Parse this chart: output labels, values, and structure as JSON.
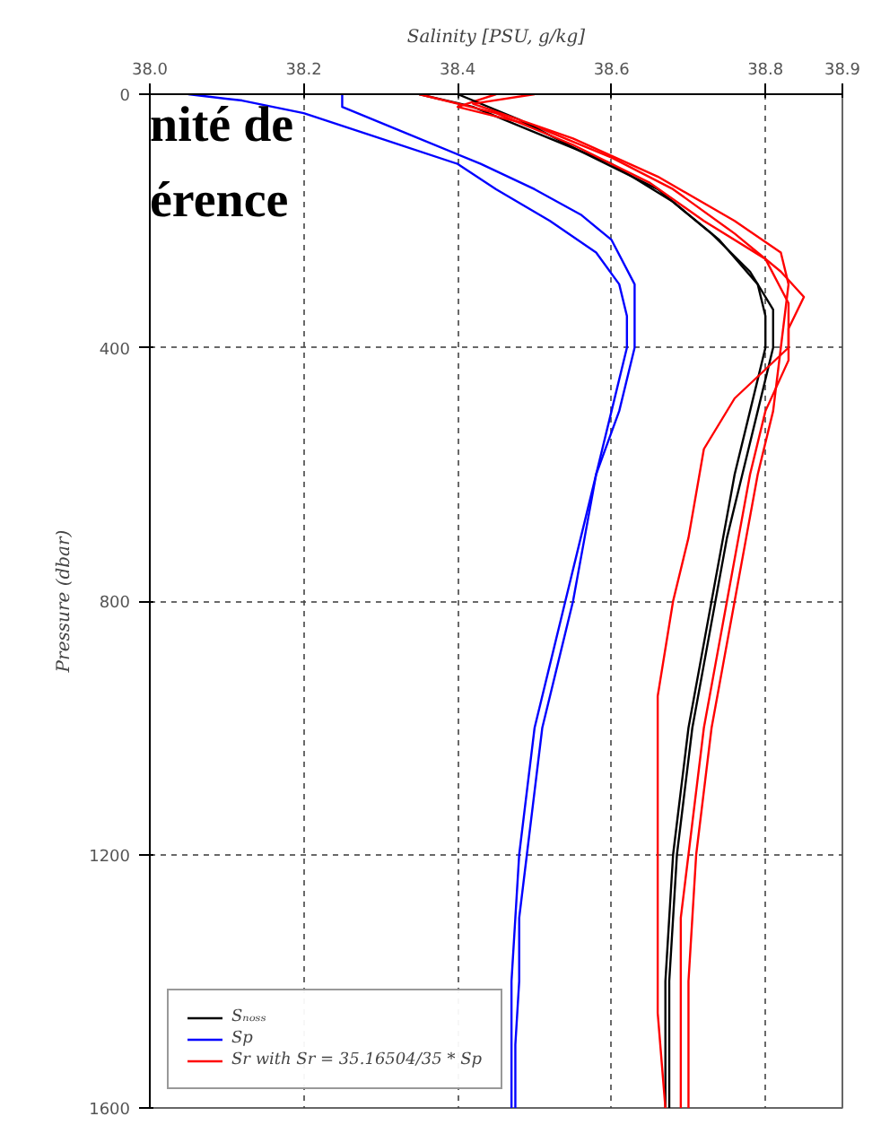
{
  "chart_data": {
    "type": "line",
    "xlabel": "Salinity [PSU, g/kg]",
    "ylabel": "Pressure (dbar)",
    "annotations": [
      "nité de",
      "érence"
    ],
    "xlim": [
      38.0,
      38.9
    ],
    "xticks": [
      {
        "value": 38.0,
        "label": "38.0"
      },
      {
        "value": 38.2,
        "label": "38.2"
      },
      {
        "value": 38.4,
        "label": "38.4"
      },
      {
        "value": 38.6,
        "label": "38.6"
      },
      {
        "value": 38.8,
        "label": "38.8"
      },
      {
        "value": 38.9,
        "label": "38.9"
      }
    ],
    "ylim": [
      1600,
      0
    ],
    "yticks": [
      0,
      400,
      800,
      1200,
      1600
    ],
    "grid": true,
    "legend": "bottom left",
    "line_style": "solid",
    "marker": "none",
    "series": [
      {
        "name": "Sₙₒₛₛ",
        "color": "#000000",
        "x": [
          38.35,
          38.42,
          38.5,
          38.6,
          38.68,
          38.74,
          38.79,
          38.8,
          38.8,
          38.78,
          38.76,
          38.745,
          38.73,
          38.715,
          38.7,
          38.69,
          38.68,
          38.675,
          38.67,
          38.67,
          38.67
        ],
        "values": [
          0,
          20,
          60,
          110,
          170,
          230,
          300,
          350,
          400,
          500,
          600,
          700,
          800,
          900,
          1000,
          1100,
          1200,
          1300,
          1400,
          1500,
          1600
        ]
      },
      {
        "name": "Sp",
        "color": "#0000ff",
        "x": [
          38.05,
          38.12,
          38.2,
          38.3,
          38.4,
          38.45,
          38.52,
          38.58,
          38.61,
          38.62,
          38.62,
          38.6,
          38.58,
          38.56,
          38.54,
          38.52,
          38.5,
          38.49,
          38.48,
          38.475,
          38.47,
          38.47,
          38.47
        ],
        "values": [
          0,
          10,
          30,
          70,
          110,
          150,
          200,
          250,
          300,
          350,
          400,
          500,
          600,
          700,
          800,
          900,
          1000,
          1100,
          1200,
          1300,
          1400,
          1500,
          1600
        ]
      },
      {
        "name": "Sr with Sr = 35.16504/35 * Sp",
        "color": "#ff0000",
        "x": [
          38.45,
          38.4,
          38.5,
          38.6,
          38.68,
          38.76,
          38.82,
          38.85,
          38.83,
          38.83,
          38.8,
          38.78,
          38.765,
          38.75,
          38.735,
          38.72,
          38.71,
          38.7,
          38.69,
          38.69,
          38.69,
          38.69
        ],
        "values": [
          0,
          20,
          50,
          100,
          150,
          220,
          280,
          320,
          370,
          420,
          500,
          600,
          700,
          800,
          900,
          1000,
          1100,
          1200,
          1300,
          1400,
          1500,
          1600
        ]
      },
      {
        "color": "#000000",
        "x": [
          38.4,
          38.48,
          38.56,
          38.66,
          38.73,
          38.78,
          38.81,
          38.81,
          38.79,
          38.77,
          38.75,
          38.735,
          38.72,
          38.705,
          38.695,
          38.685,
          38.68,
          38.675,
          38.675,
          38.675
        ],
        "values": [
          0,
          40,
          90,
          150,
          220,
          280,
          340,
          400,
          500,
          600,
          700,
          800,
          900,
          1000,
          1100,
          1200,
          1300,
          1400,
          1500,
          1600
        ]
      },
      {
        "color": "#0000ff",
        "x": [
          38.25,
          38.25,
          38.33,
          38.43,
          38.5,
          38.56,
          38.6,
          38.63,
          38.63,
          38.61,
          38.58,
          38.565,
          38.55,
          38.53,
          38.51,
          38.5,
          38.49,
          38.48,
          38.48,
          38.475,
          38.475
        ],
        "values": [
          0,
          20,
          60,
          110,
          150,
          190,
          230,
          300,
          400,
          500,
          600,
          700,
          800,
          900,
          1000,
          1100,
          1200,
          1300,
          1400,
          1500,
          1600
        ]
      },
      {
        "color": "#ff0000",
        "x": [
          38.35,
          38.45,
          38.55,
          38.65,
          38.72,
          38.8,
          38.83,
          38.83,
          38.76,
          38.72,
          38.7,
          38.68,
          38.66,
          38.66,
          38.66,
          38.66,
          38.67
        ],
        "values": [
          0,
          30,
          80,
          140,
          200,
          260,
          330,
          400,
          480,
          560,
          700,
          800,
          950,
          1100,
          1300,
          1450,
          1600
        ]
      },
      {
        "color": "#ff0000",
        "x": [
          38.5,
          38.42,
          38.55,
          38.66,
          38.76,
          38.82,
          38.83,
          38.82,
          38.81,
          38.79,
          38.775,
          38.76,
          38.745,
          38.73,
          38.72,
          38.71,
          38.705,
          38.7,
          38.7,
          38.7
        ],
        "values": [
          0,
          15,
          70,
          130,
          200,
          250,
          300,
          400,
          500,
          600,
          700,
          800,
          900,
          1000,
          1100,
          1200,
          1300,
          1400,
          1500,
          1600
        ]
      }
    ]
  }
}
